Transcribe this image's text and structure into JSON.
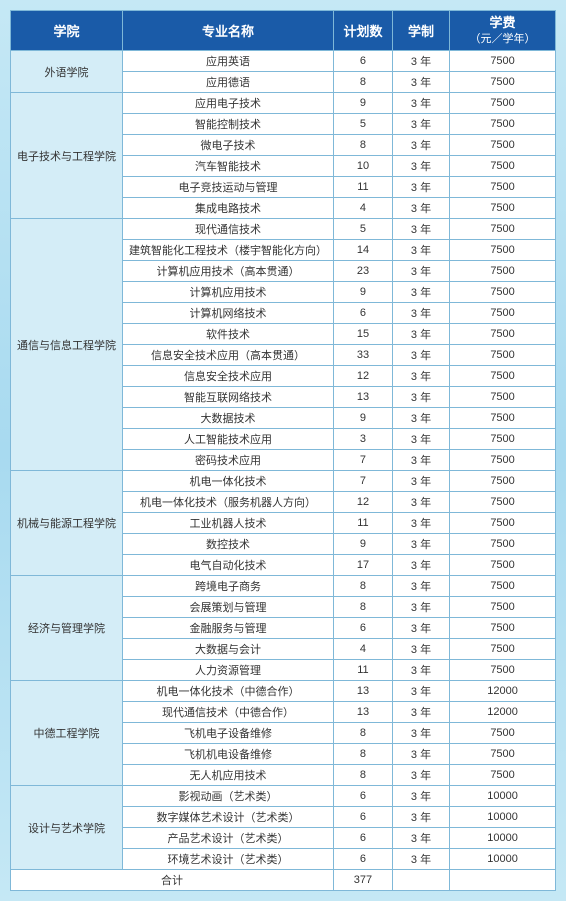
{
  "headers": {
    "college": "学院",
    "major": "专业名称",
    "plan": "计划数",
    "duration": "学制",
    "tuition": "学费",
    "tuition_sub": "（元／学年）"
  },
  "colleges": [
    {
      "name": "外语学院",
      "majors": [
        {
          "name": "应用英语",
          "plan": 6,
          "duration": "3 年",
          "tuition": 7500
        },
        {
          "name": "应用德语",
          "plan": 8,
          "duration": "3 年",
          "tuition": 7500
        }
      ]
    },
    {
      "name": "电子技术与工程学院",
      "majors": [
        {
          "name": "应用电子技术",
          "plan": 9,
          "duration": "3 年",
          "tuition": 7500
        },
        {
          "name": "智能控制技术",
          "plan": 5,
          "duration": "3 年",
          "tuition": 7500
        },
        {
          "name": "微电子技术",
          "plan": 8,
          "duration": "3 年",
          "tuition": 7500
        },
        {
          "name": "汽车智能技术",
          "plan": 10,
          "duration": "3 年",
          "tuition": 7500
        },
        {
          "name": "电子竞技运动与管理",
          "plan": 11,
          "duration": "3 年",
          "tuition": 7500
        },
        {
          "name": "集成电路技术",
          "plan": 4,
          "duration": "3 年",
          "tuition": 7500
        }
      ]
    },
    {
      "name": "通信与信息工程学院",
      "majors": [
        {
          "name": "现代通信技术",
          "plan": 5,
          "duration": "3 年",
          "tuition": 7500
        },
        {
          "name": "建筑智能化工程技术（楼宇智能化方向）",
          "plan": 14,
          "duration": "3 年",
          "tuition": 7500
        },
        {
          "name": "计算机应用技术（高本贯通）",
          "plan": 23,
          "duration": "3 年",
          "tuition": 7500
        },
        {
          "name": "计算机应用技术",
          "plan": 9,
          "duration": "3 年",
          "tuition": 7500
        },
        {
          "name": "计算机网络技术",
          "plan": 6,
          "duration": "3 年",
          "tuition": 7500
        },
        {
          "name": "软件技术",
          "plan": 15,
          "duration": "3 年",
          "tuition": 7500
        },
        {
          "name": "信息安全技术应用（高本贯通）",
          "plan": 33,
          "duration": "3 年",
          "tuition": 7500
        },
        {
          "name": "信息安全技术应用",
          "plan": 12,
          "duration": "3 年",
          "tuition": 7500
        },
        {
          "name": "智能互联网络技术",
          "plan": 13,
          "duration": "3 年",
          "tuition": 7500
        },
        {
          "name": "大数据技术",
          "plan": 9,
          "duration": "3 年",
          "tuition": 7500
        },
        {
          "name": "人工智能技术应用",
          "plan": 3,
          "duration": "3 年",
          "tuition": 7500
        },
        {
          "name": "密码技术应用",
          "plan": 7,
          "duration": "3 年",
          "tuition": 7500
        }
      ]
    },
    {
      "name": "机械与能源工程学院",
      "majors": [
        {
          "name": "机电一体化技术",
          "plan": 7,
          "duration": "3 年",
          "tuition": 7500
        },
        {
          "name": "机电一体化技术（服务机器人方向）",
          "plan": 12,
          "duration": "3 年",
          "tuition": 7500
        },
        {
          "name": "工业机器人技术",
          "plan": 11,
          "duration": "3 年",
          "tuition": 7500
        },
        {
          "name": "数控技术",
          "plan": 9,
          "duration": "3 年",
          "tuition": 7500
        },
        {
          "name": "电气自动化技术",
          "plan": 17,
          "duration": "3 年",
          "tuition": 7500
        }
      ]
    },
    {
      "name": "经济与管理学院",
      "majors": [
        {
          "name": "跨境电子商务",
          "plan": 8,
          "duration": "3 年",
          "tuition": 7500
        },
        {
          "name": "会展策划与管理",
          "plan": 8,
          "duration": "3 年",
          "tuition": 7500
        },
        {
          "name": "金融服务与管理",
          "plan": 6,
          "duration": "3 年",
          "tuition": 7500
        },
        {
          "name": "大数据与会计",
          "plan": 4,
          "duration": "3 年",
          "tuition": 7500
        },
        {
          "name": "人力资源管理",
          "plan": 11,
          "duration": "3 年",
          "tuition": 7500
        }
      ]
    },
    {
      "name": "中德工程学院",
      "majors": [
        {
          "name": "机电一体化技术（中德合作）",
          "plan": 13,
          "duration": "3 年",
          "tuition": 12000
        },
        {
          "name": "现代通信技术（中德合作）",
          "plan": 13,
          "duration": "3 年",
          "tuition": 12000
        },
        {
          "name": "飞机电子设备维修",
          "plan": 8,
          "duration": "3 年",
          "tuition": 7500
        },
        {
          "name": "飞机机电设备维修",
          "plan": 8,
          "duration": "3 年",
          "tuition": 7500
        },
        {
          "name": "无人机应用技术",
          "plan": 8,
          "duration": "3 年",
          "tuition": 7500
        }
      ]
    },
    {
      "name": "设计与艺术学院",
      "majors": [
        {
          "name": "影视动画（艺术类）",
          "plan": 6,
          "duration": "3 年",
          "tuition": 10000
        },
        {
          "name": "数字媒体艺术设计（艺术类）",
          "plan": 6,
          "duration": "3 年",
          "tuition": 10000
        },
        {
          "name": "产品艺术设计（艺术类）",
          "plan": 6,
          "duration": "3 年",
          "tuition": 10000
        },
        {
          "name": "环境艺术设计（艺术类）",
          "plan": 6,
          "duration": "3 年",
          "tuition": 10000
        }
      ]
    }
  ],
  "total": {
    "label": "合计",
    "plan": 377
  },
  "styling": {
    "header_bg": "#1a5ba8",
    "header_color": "#ffffff",
    "border_color": "#7fb8d8",
    "college_bg": "#d4edf7",
    "row_bg": "#ffffff",
    "text_color": "#333333",
    "body_bg_gradient": [
      "#c5e8f5",
      "#a8daf0",
      "#c5e8f5"
    ],
    "header_fontsize": 13,
    "cell_fontsize": 11
  }
}
